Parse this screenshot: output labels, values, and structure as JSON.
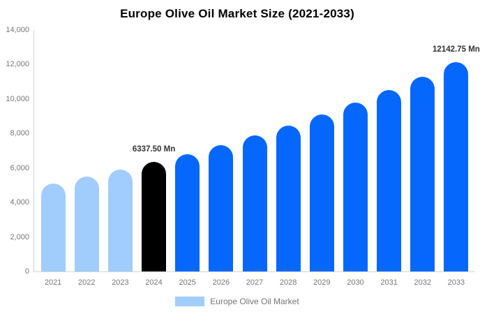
{
  "title": "Europe Olive Oil Market Size (2021-2033)",
  "chart_data": {
    "type": "bar",
    "title": "Europe Olive Oil Market Size (2021-2033)",
    "xlabel": "",
    "ylabel": "",
    "categories": [
      "2021",
      "2022",
      "2023",
      "2024",
      "2025",
      "2026",
      "2027",
      "2028",
      "2029",
      "2030",
      "2031",
      "2032",
      "2033"
    ],
    "values": [
      5103,
      5485,
      5896,
      6337.5,
      6812.3,
      7322.7,
      7871.4,
      8461.2,
      9095.1,
      9776.6,
      10509.1,
      11296.5,
      12142.75
    ],
    "unit": "Mn",
    "ylim": [
      0,
      14000
    ],
    "yticks": [
      0,
      2000,
      4000,
      6000,
      8000,
      10000,
      12000,
      14000
    ],
    "ytick_labels": [
      "0",
      "2,000",
      "4,000",
      "6,000",
      "8,000",
      "10,000",
      "12,000",
      "14,000"
    ],
    "grid": false,
    "legend": {
      "position": "bottom",
      "entries": [
        {
          "label": "Europe Olive Oil Market",
          "color": "#a0cdfb"
        }
      ]
    },
    "point_colors": [
      "#a0cdfb",
      "#a0cdfb",
      "#a0cdfb",
      "#000000",
      "#0567fb",
      "#0567fb",
      "#0567fb",
      "#0567fb",
      "#0567fb",
      "#0567fb",
      "#0567fb",
      "#0567fb",
      "#0567fb"
    ],
    "annotations": [
      {
        "index": 3,
        "category": "2024",
        "text": "6337.50 Mn"
      },
      {
        "index": 12,
        "category": "2033",
        "text": "12142.75 Mn"
      }
    ],
    "colors": {
      "historical_bar": "#a0cdfb",
      "base_year_bar": "#000000",
      "forecast_bar": "#0567fb",
      "axis_line": "#d4d4d4",
      "tick_text": "#757575",
      "annotation_text": "#333333",
      "title_text": "#000000",
      "background": "#ffffff"
    }
  }
}
